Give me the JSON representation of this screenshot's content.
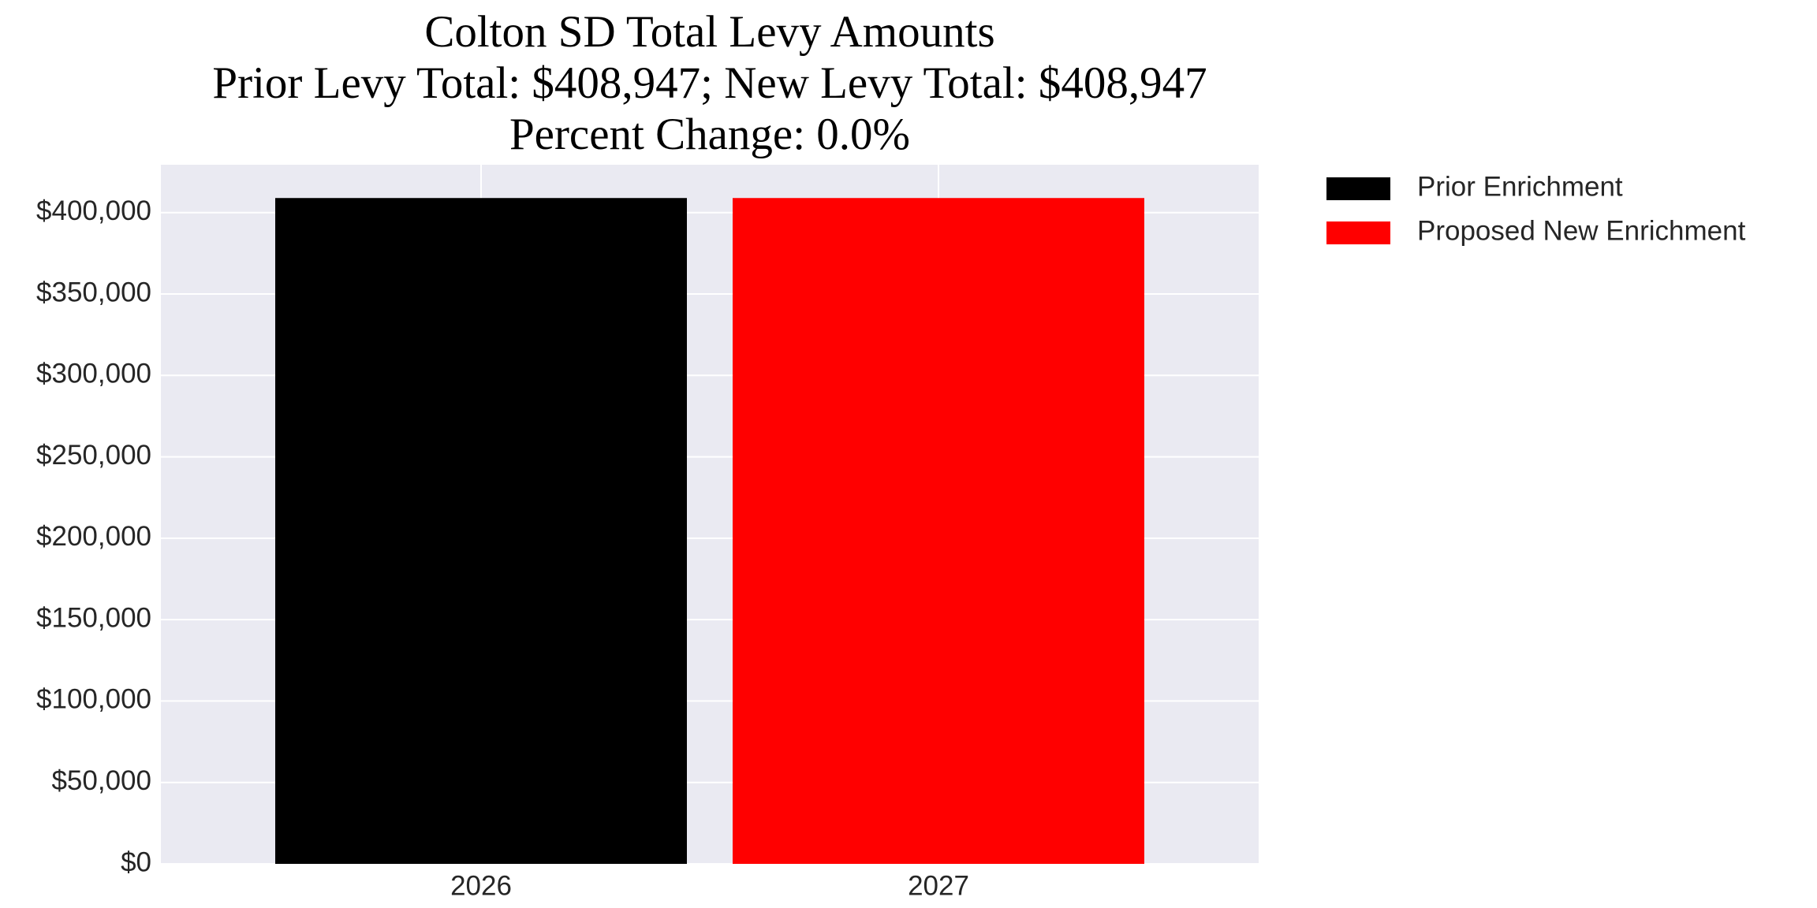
{
  "chart_data": {
    "type": "bar",
    "title": [
      "Colton SD Total Levy Amounts",
      "Prior Levy Total:  $408,947; New Levy Total: $408,947",
      "Percent Change: 0.0%"
    ],
    "categories": [
      "2026",
      "2027"
    ],
    "series": [
      {
        "name": "Prior Enrichment",
        "color": "#000000",
        "values": [
          408947,
          null
        ]
      },
      {
        "name": "Proposed New Enrichment",
        "color": "#ff0000",
        "values": [
          null,
          408947
        ]
      }
    ],
    "ylim": [
      0,
      429394
    ],
    "yticks": [
      {
        "value": 0,
        "label": "$0"
      },
      {
        "value": 50000,
        "label": "$50,000"
      },
      {
        "value": 100000,
        "label": "$100,000"
      },
      {
        "value": 150000,
        "label": "$150,000"
      },
      {
        "value": 200000,
        "label": "$200,000"
      },
      {
        "value": 250000,
        "label": "$250,000"
      },
      {
        "value": 300000,
        "label": "$300,000"
      },
      {
        "value": 350000,
        "label": "$350,000"
      },
      {
        "value": 400000,
        "label": "$400,000"
      }
    ],
    "grid": true,
    "legend": "outside-right"
  }
}
